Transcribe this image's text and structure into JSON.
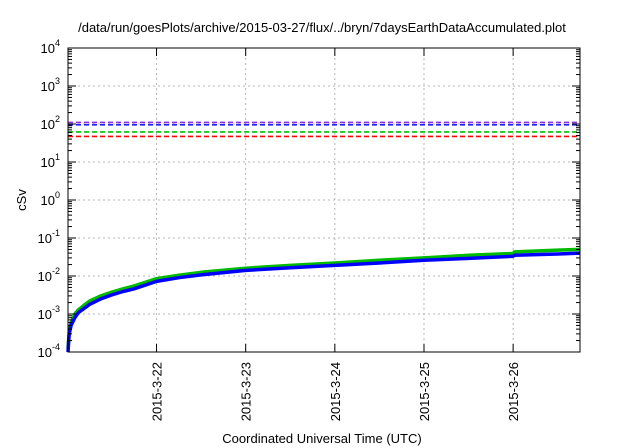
{
  "chart_data": {
    "type": "line",
    "title": "/data/run/goesPlots/archive/2015-03-27/flux/../bryn/7daysEarthDataAccumulated.plot",
    "xlabel": "Coordinated Universal Time (UTC)",
    "ylabel": "cSv",
    "y_scale": "log",
    "ylim": [
      0.0001,
      10000
    ],
    "x_domain": [
      "2015-03-21T00:10",
      "2015-03-26T18:00"
    ],
    "y_ticks": [
      {
        "base": "10",
        "exp": "-4",
        "value": 0.0001
      },
      {
        "base": "10",
        "exp": "-3",
        "value": 0.001
      },
      {
        "base": "10",
        "exp": "-2",
        "value": 0.01
      },
      {
        "base": "10",
        "exp": "-1",
        "value": 0.1
      },
      {
        "base": "10",
        "exp": "0",
        "value": 1
      },
      {
        "base": "10",
        "exp": "1",
        "value": 10
      },
      {
        "base": "10",
        "exp": "2",
        "value": 100
      },
      {
        "base": "10",
        "exp": "3",
        "value": 1000
      },
      {
        "base": "10",
        "exp": "4",
        "value": 10000
      }
    ],
    "x_ticks": [
      {
        "label": "2015-3-22",
        "t": "2015-03-22"
      },
      {
        "label": "2015-3-23",
        "t": "2015-03-23"
      },
      {
        "label": "2015-3-24",
        "t": "2015-03-24"
      },
      {
        "label": "2015-3-25",
        "t": "2015-03-25"
      },
      {
        "label": "2015-3-26",
        "t": "2015-03-26"
      }
    ],
    "grid": true,
    "thresholds": [
      {
        "value": 110,
        "color": "#8b2be2",
        "dash": "dashed"
      },
      {
        "value": 95,
        "color": "#1f1fff",
        "dash": "dashed"
      },
      {
        "value": 62,
        "color": "#00c000",
        "dash": "dashed"
      },
      {
        "value": 47,
        "color": "#ff0000",
        "dash": "dashed"
      }
    ],
    "series": [
      {
        "color": "#00bb00",
        "x": [
          "2015-03-21T00:10",
          "2015-03-21T00:30",
          "2015-03-21T01:00",
          "2015-03-21T02:00",
          "2015-03-21T03:00",
          "2015-03-21T04:30",
          "2015-03-21T06:00",
          "2015-03-21T09:00",
          "2015-03-21T12:00",
          "2015-03-21T15:00",
          "2015-03-21T18:00",
          "2015-03-22T00:00",
          "2015-03-22T06:00",
          "2015-03-22T12:00",
          "2015-03-23T00:00",
          "2015-03-23T12:00",
          "2015-03-24T00:00",
          "2015-03-24T12:00",
          "2015-03-25T00:00",
          "2015-03-25T12:00",
          "2015-03-26T00:00",
          "2015-03-26T00:20",
          "2015-03-26T12:00",
          "2015-03-26T18:00"
        ],
        "y": [
          0.00012,
          0.00035,
          0.0006,
          0.001,
          0.0013,
          0.0017,
          0.0022,
          0.003,
          0.0038,
          0.0046,
          0.0055,
          0.0085,
          0.0105,
          0.0125,
          0.016,
          0.019,
          0.022,
          0.026,
          0.03,
          0.035,
          0.039,
          0.043,
          0.048,
          0.05
        ]
      },
      {
        "color": "#0000ff",
        "x": [
          "2015-03-21T00:10",
          "2015-03-21T00:30",
          "2015-03-21T01:00",
          "2015-03-21T02:00",
          "2015-03-21T03:00",
          "2015-03-21T04:30",
          "2015-03-21T06:00",
          "2015-03-21T09:00",
          "2015-03-21T12:00",
          "2015-03-21T15:00",
          "2015-03-21T18:00",
          "2015-03-22T00:00",
          "2015-03-22T06:00",
          "2015-03-22T12:00",
          "2015-03-23T00:00",
          "2015-03-23T12:00",
          "2015-03-24T00:00",
          "2015-03-24T12:00",
          "2015-03-25T00:00",
          "2015-03-25T12:00",
          "2015-03-26T00:00",
          "2015-03-26T00:20",
          "2015-03-26T12:00",
          "2015-03-26T18:00"
        ],
        "y": [
          0.0001,
          0.0003,
          0.0005,
          0.0008,
          0.0011,
          0.0014,
          0.0018,
          0.0025,
          0.0032,
          0.0039,
          0.0046,
          0.0072,
          0.009,
          0.0107,
          0.014,
          0.0165,
          0.019,
          0.022,
          0.026,
          0.029,
          0.033,
          0.035,
          0.038,
          0.04
        ]
      }
    ]
  }
}
